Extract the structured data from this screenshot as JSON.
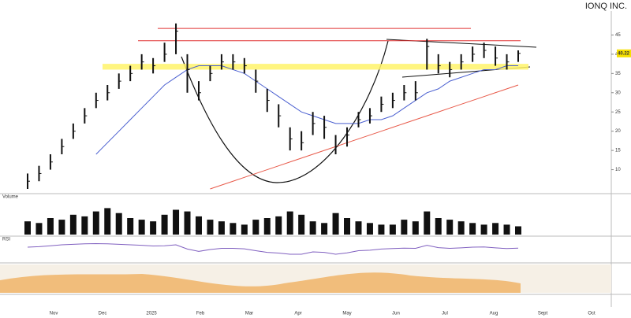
{
  "chart_data": {
    "type": "ohlc",
    "title": "IONQ INC.",
    "x_labels": [
      "Nov",
      "Dec",
      "2025",
      "Feb",
      "Mar",
      "Apr",
      "May",
      "Jun",
      "Jul",
      "Aug",
      "Sept",
      "Oct"
    ],
    "high": [
      9,
      11,
      14,
      18,
      22,
      26,
      30,
      32,
      35,
      37,
      40,
      39,
      43,
      48,
      40,
      33,
      37,
      40,
      40,
      39,
      36,
      31,
      27,
      21,
      20,
      25,
      24,
      19,
      21,
      25,
      26,
      29,
      30,
      32,
      33,
      44,
      40,
      38,
      40,
      42,
      43,
      42,
      40,
      41
    ],
    "low": [
      5,
      7,
      10,
      14,
      18,
      22,
      26,
      28,
      31,
      33,
      36,
      35,
      38,
      40,
      30,
      28,
      33,
      36,
      36,
      35,
      30,
      25,
      21,
      15,
      15,
      19,
      18,
      14,
      16,
      21,
      22,
      25,
      26,
      28,
      28,
      36,
      35,
      34,
      36,
      38,
      39,
      37,
      36,
      38
    ],
    "close": [
      7,
      9,
      12,
      16,
      20,
      24,
      28,
      30,
      33,
      35,
      38,
      37,
      40,
      46,
      36,
      30,
      35,
      38,
      38,
      37,
      33,
      28,
      24,
      18,
      17,
      22,
      21,
      16,
      19,
      23,
      24,
      27,
      28,
      30,
      30,
      42,
      37,
      36,
      38,
      40,
      41,
      39,
      38,
      40.22
    ],
    "ma_fast": {
      "color": "#4a5fd0",
      "values": [
        null,
        null,
        null,
        null,
        null,
        null,
        14,
        17,
        20,
        23,
        26,
        29,
        32,
        34,
        36,
        37,
        37,
        37,
        36,
        35,
        33,
        31,
        29,
        27,
        25,
        24,
        23,
        22,
        22,
        22,
        23,
        23,
        24,
        26,
        28,
        30,
        31,
        33,
        34,
        35,
        36,
        36,
        37,
        37
      ]
    },
    "ma_slow": {
      "color": "#e85a4a",
      "values": [
        null,
        null,
        null,
        null,
        null,
        null,
        null,
        null,
        null,
        null,
        null,
        null,
        null,
        null,
        null,
        null,
        5,
        6,
        7,
        8,
        9,
        10,
        11,
        12,
        13,
        14,
        15,
        16,
        17,
        18,
        19,
        20,
        21,
        22,
        23,
        24,
        25,
        26,
        27,
        28,
        29,
        30,
        31,
        32
      ]
    },
    "support_zone": [
      36,
      37.5
    ],
    "resistance_lines": [
      43.5,
      46.7
    ],
    "ylim": [
      5,
      50
    ],
    "yticks": [
      10,
      15,
      20,
      25,
      30,
      35,
      40,
      45
    ],
    "volume": {
      "label": "Volume",
      "values": [
        40,
        35,
        50,
        45,
        60,
        55,
        70,
        80,
        65,
        50,
        45,
        40,
        60,
        75,
        70,
        55,
        45,
        40,
        35,
        30,
        45,
        50,
        55,
        70,
        60,
        40,
        35,
        65,
        50,
        40,
        35,
        30,
        30,
        45,
        40,
        70,
        50,
        45,
        40,
        35,
        30,
        35,
        30,
        25
      ],
      "ylim": [
        0,
        100
      ]
    },
    "rsi": {
      "label": "RSI",
      "values": [
        60,
        62,
        66,
        70,
        72,
        74,
        75,
        74,
        72,
        70,
        68,
        65,
        66,
        70,
        52,
        42,
        50,
        55,
        55,
        53,
        45,
        38,
        35,
        30,
        30,
        40,
        38,
        30,
        36,
        45,
        47,
        52,
        54,
        56,
        55,
        68,
        58,
        55,
        57,
        60,
        61,
        57,
        54,
        56
      ],
      "ylim": [
        0,
        100
      ]
    }
  }
}
